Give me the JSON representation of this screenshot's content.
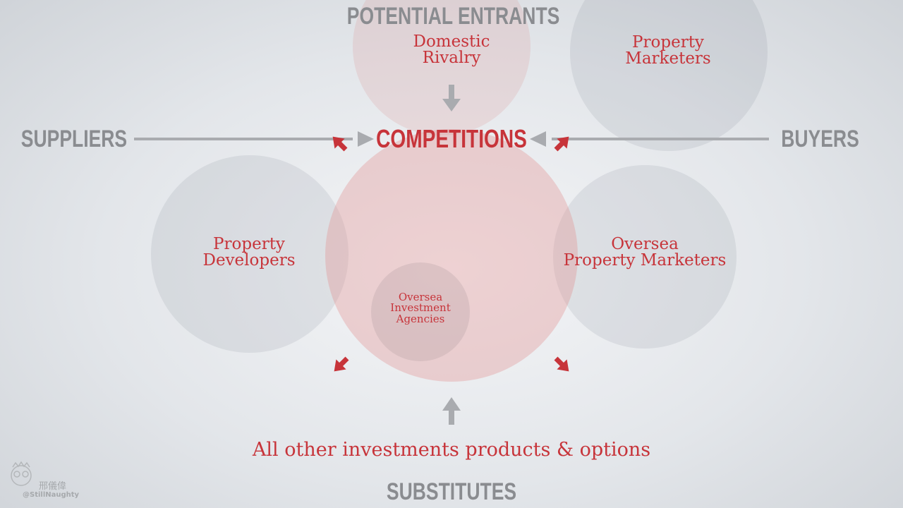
{
  "headings": {
    "top": "POTENTIAL ENTRANTS",
    "left": "SUPPLIERS",
    "right": "BUYERS",
    "bottom": "SUBSTITUTES",
    "center": "COMPETITIONS"
  },
  "nodes": {
    "domestic_rivalry": [
      "Domestic",
      "Rivalry"
    ],
    "property_marketers": [
      "Property",
      "Marketers"
    ],
    "property_developers": [
      "Property",
      "Developers"
    ],
    "oversea_property_marketers": [
      "Oversea",
      "Property Marketers"
    ],
    "oversea_investment_agencies": [
      "Oversea",
      "Investment",
      "Agencies"
    ]
  },
  "substitutes_text": "All other investments products & options",
  "watermark": {
    "name": "邢儀偉",
    "handle": "@StillNaughty"
  },
  "colors": {
    "accent_red": "#c7343a",
    "heading_grey": "#8a8c90",
    "arrow_grey": "#a9abaf"
  }
}
